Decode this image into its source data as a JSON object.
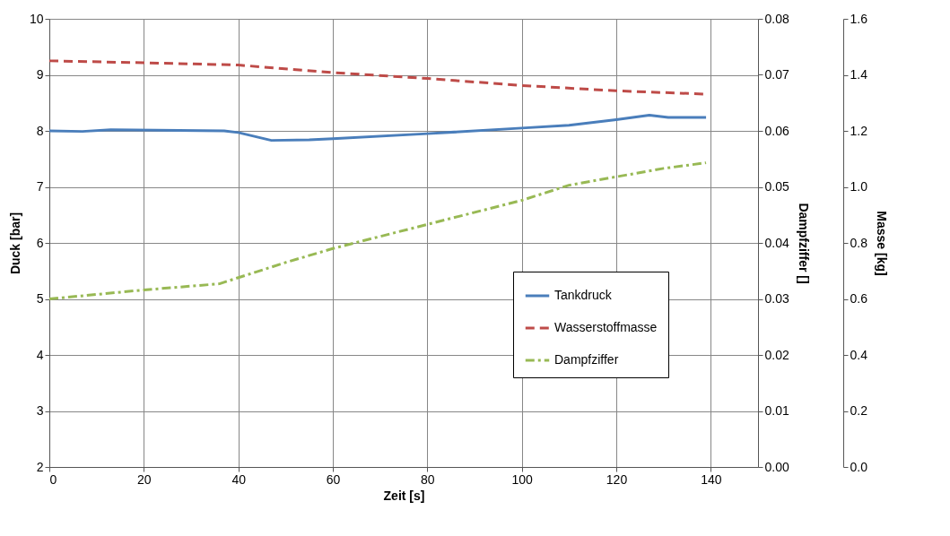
{
  "chart_data": {
    "type": "line",
    "xlabel": "Zeit [s]",
    "ylabel": "Duck [bar]",
    "y2label": "Dampfziffer []",
    "y3label": "Masse [kg]",
    "xlim": [
      0,
      150
    ],
    "xticks": [
      0,
      20,
      40,
      60,
      80,
      100,
      120,
      140
    ],
    "ylim": [
      2,
      10
    ],
    "yticks": [
      2,
      3,
      4,
      5,
      6,
      7,
      8,
      9,
      10
    ],
    "y2lim": [
      0,
      0.08
    ],
    "y2ticks": [
      {
        "value": 0,
        "label": "0.00"
      },
      0.01,
      0.02,
      0.03,
      0.04,
      0.05,
      0.06,
      0.07,
      0.08
    ],
    "y3lim": [
      0,
      1.6
    ],
    "y3ticks": [
      {
        "value": 0,
        "label": "0.0"
      },
      0.2,
      0.4,
      0.6,
      0.8,
      {
        "value": 1,
        "label": "1.0"
      },
      1.2,
      1.4,
      1.6
    ],
    "grid": true,
    "legend": "bottom right",
    "marker": "none",
    "series": [
      {
        "name": "Tankdruck",
        "color": "#4a7ebb",
        "line_style": "solid",
        "x": [
          0,
          7,
          13,
          37,
          40,
          47,
          55,
          60,
          80,
          100,
          110,
          120,
          127,
          131,
          139
        ],
        "values": [
          8.0,
          7.99,
          8.02,
          8.0,
          7.97,
          7.83,
          7.84,
          7.86,
          7.95,
          8.05,
          8.1,
          8.2,
          8.28,
          8.24,
          8.24
        ]
      },
      {
        "name": "Wasserstoffmasse",
        "color": "#be4b48",
        "line_style": "dashed",
        "axis": "y3",
        "x": [
          0,
          20,
          40,
          60,
          80,
          100,
          120,
          139
        ],
        "values": [
          1.45,
          1.443,
          1.435,
          1.408,
          1.387,
          1.362,
          1.343,
          1.331
        ]
      },
      {
        "name": "Dampfziffer",
        "color": "#98b954",
        "line_style": "dashdot",
        "axis": "y2",
        "x": [
          0,
          10,
          20,
          36,
          40,
          50,
          60,
          80,
          100,
          110,
          120,
          130,
          139
        ],
        "values": [
          0.03,
          0.0308,
          0.0316,
          0.0327,
          0.0338,
          0.0365,
          0.039,
          0.0433,
          0.0476,
          0.0503,
          0.0518,
          0.0533,
          0.0543
        ]
      }
    ]
  }
}
